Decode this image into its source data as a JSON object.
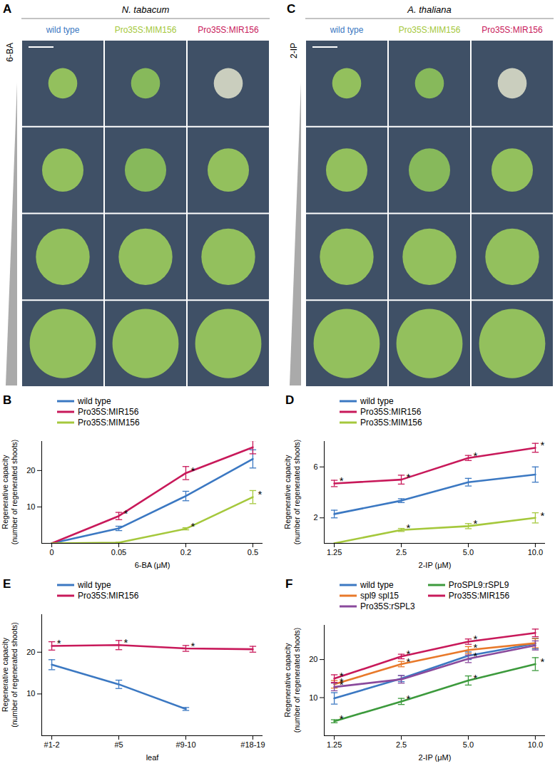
{
  "photo_panels": [
    {
      "panel": "A",
      "species": "N. tabacum",
      "treatment": "6-BA",
      "rows": 4,
      "columns": [
        "wild type",
        "Pro35S:MIM156",
        "Pro35S:MIR156"
      ],
      "column_colors": [
        "#3b78c2",
        "#a5c83c",
        "#c8195a"
      ]
    },
    {
      "panel": "C",
      "species": "A. thaliana",
      "treatment": "2-IP",
      "rows": 4,
      "columns": [
        "wild type",
        "Pro35S:MIM156",
        "Pro35S:MIR156"
      ],
      "column_colors": [
        "#3b78c2",
        "#a5c83c",
        "#c8195a"
      ]
    }
  ],
  "chart_data": [
    {
      "type": "line",
      "title": "B",
      "legend": "top-left",
      "categories": [
        "0",
        "0.05",
        "0.2",
        "0.5"
      ],
      "x_label": "6-BA (μM)",
      "y_label": [
        "Regenerative capacity",
        "(number of regenerated shoots)"
      ],
      "ylim": [
        0,
        28
      ],
      "yticks": [
        10,
        20
      ],
      "series": [
        {
          "name": "wild type",
          "color": "#3b78c2",
          "values": [
            0,
            4.1,
            13,
            23.2
          ],
          "errors": [
            0,
            0.6,
            1.3,
            2.5
          ],
          "annotations": [
            null,
            null,
            null,
            null
          ]
        },
        {
          "name": "Pro35S:MIR156",
          "color": "#c8195a",
          "values": [
            0,
            7.5,
            19.3,
            26.4
          ],
          "errors": [
            0,
            1,
            1.8,
            1.8
          ],
          "annotations": [
            null,
            "*",
            "*",
            null
          ]
        },
        {
          "name": "Pro35S:MIM156",
          "color": "#a5c83c",
          "values": [
            0,
            0.2,
            4,
            12.7
          ],
          "errors": [
            0,
            0.1,
            0.3,
            1.8
          ],
          "annotations": [
            null,
            null,
            "*",
            "*"
          ]
        }
      ]
    },
    {
      "type": "line",
      "title": "D",
      "legend": "top-left",
      "categories": [
        "1.25",
        "2.5",
        "5.0",
        "10.0"
      ],
      "x_label": "2-IP (μM)",
      "y_label": [
        "Regenerative capacity",
        "(number of regenerated shoots)"
      ],
      "ylim": [
        0,
        8
      ],
      "yticks": [
        2,
        6
      ],
      "series": [
        {
          "name": "wild type",
          "color": "#3b78c2",
          "values": [
            2.3,
            3.35,
            4.8,
            5.4
          ],
          "errors": [
            0.3,
            0.15,
            0.3,
            0.6
          ],
          "annotations": [
            null,
            null,
            null,
            null
          ]
        },
        {
          "name": "Pro35S:MIR156",
          "color": "#c8195a",
          "values": [
            4.7,
            5.0,
            6.7,
            7.5
          ],
          "errors": [
            0.25,
            0.35,
            0.2,
            0.35
          ],
          "annotations": [
            "*",
            "*",
            "*",
            "*"
          ]
        },
        {
          "name": "Pro35S:MIM156",
          "color": "#a5c83c",
          "values": [
            0,
            1.05,
            1.35,
            2.0
          ],
          "errors": [
            0,
            0.12,
            0.2,
            0.4
          ],
          "annotations": [
            null,
            "*",
            "*",
            "*"
          ]
        }
      ]
    },
    {
      "type": "line",
      "title": "E",
      "legend": "top-left",
      "categories": [
        "#1-2",
        "#5",
        "#9-10",
        "#18-19"
      ],
      "x_label": "leaf",
      "y_label": [
        "Regenerative capacity",
        "(number of regenerated shoots)"
      ],
      "ylim": [
        0,
        29
      ],
      "yticks": [
        10,
        20
      ],
      "series": [
        {
          "name": "wild type",
          "color": "#3b78c2",
          "values": [
            17,
            12.3,
            6.4,
            null
          ],
          "errors": [
            1.2,
            1,
            0.35,
            null
          ],
          "annotations": [
            null,
            null,
            null,
            null
          ]
        },
        {
          "name": "Pro35S:MIR156",
          "color": "#c8195a",
          "values": [
            21.5,
            21.7,
            20.9,
            20.7
          ],
          "errors": [
            1,
            1.1,
            0.7,
            0.7
          ],
          "annotations": [
            "*",
            "*",
            "*",
            null
          ]
        }
      ]
    },
    {
      "type": "line",
      "title": "F",
      "legend": "top-left",
      "categories": [
        "1.25",
        "2.5",
        "5.0",
        "10.0"
      ],
      "x_label": "2-IP (μM)",
      "y_label": [
        "Regenerative capacity",
        "(number of regenerated shoots)"
      ],
      "ylim": [
        0,
        29
      ],
      "yticks": [
        10,
        20
      ],
      "series": [
        {
          "name": "wild type",
          "color": "#3b78c2",
          "values": [
            9.8,
            15,
            21,
            24.2
          ],
          "errors": [
            1.5,
            0.8,
            1,
            1.4
          ],
          "annotations": [
            null,
            null,
            null,
            null
          ]
        },
        {
          "name": "spl9 spl15",
          "color": "#e8792a",
          "values": [
            13.5,
            18.8,
            22.5,
            24.3
          ],
          "errors": [
            1,
            0.7,
            0.9,
            1.2
          ],
          "annotations": [
            "*",
            "*",
            "*",
            null
          ]
        },
        {
          "name": "Pro35S:rSPL3",
          "color": "#8a4a9c",
          "values": [
            12.8,
            14.8,
            20.2,
            23.7
          ],
          "errors": [
            1,
            1,
            1,
            1.2
          ],
          "annotations": [
            "*",
            null,
            "*",
            null
          ]
        },
        {
          "name": "ProSPL9:rSPL9",
          "color": "#3c9a3c",
          "values": [
            3.8,
            9,
            14.5,
            18.8
          ],
          "errors": [
            0.4,
            0.8,
            1.2,
            1.7
          ],
          "annotations": [
            "*",
            "*",
            "*",
            "*"
          ]
        },
        {
          "name": "Pro35S:MIR156",
          "color": "#c8195a",
          "values": [
            15,
            20.8,
            24.7,
            27
          ],
          "errors": [
            1,
            0.6,
            0.7,
            1
          ],
          "annotations": [
            "*",
            "*",
            "*",
            null
          ]
        }
      ]
    }
  ]
}
